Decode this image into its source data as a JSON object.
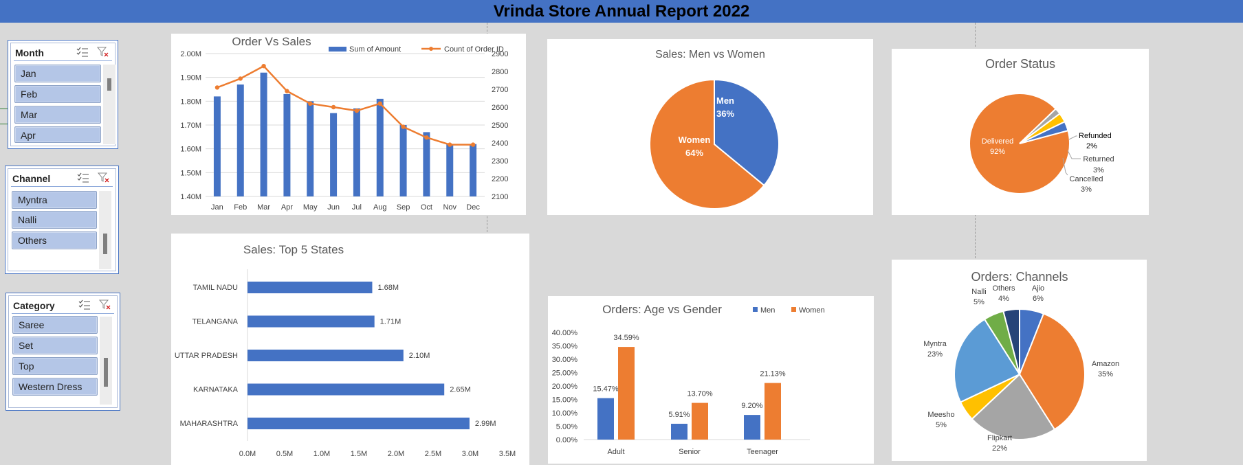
{
  "report_title": "Vrinda Store Annual Report 2022",
  "slicers": {
    "month": {
      "title": "Month",
      "items": [
        "Jan",
        "Feb",
        "Mar",
        "Apr"
      ]
    },
    "channel": {
      "title": "Channel",
      "items": [
        "Myntra",
        "Nalli",
        "Others"
      ]
    },
    "category": {
      "title": "Category",
      "items": [
        "Saree",
        "Set",
        "Top",
        "Western Dress"
      ]
    },
    "icons": {
      "multi_select": "multi-select-icon",
      "clear_filter": "clear-filter-icon"
    }
  },
  "colors": {
    "blue": "#4472c4",
    "orange": "#ed7d31",
    "gray": "#a5a5a5",
    "yellow": "#ffc000",
    "lightblue": "#5b9bd5",
    "green": "#70ad47",
    "navy": "#264478"
  },
  "chart_data": [
    {
      "id": "order_vs_sales",
      "type": "bar",
      "title": "Order Vs Sales",
      "categories": [
        "Jan",
        "Feb",
        "Mar",
        "Apr",
        "May",
        "Jun",
        "Jul",
        "Aug",
        "Sep",
        "Oct",
        "Nov",
        "Dec"
      ],
      "series": [
        {
          "name": "Sum of Amount",
          "type": "bar",
          "axis": "left",
          "values": [
            1.82,
            1.87,
            1.92,
            1.83,
            1.8,
            1.75,
            1.77,
            1.81,
            1.7,
            1.67,
            1.62,
            1.62
          ]
        },
        {
          "name": "Count of Order ID",
          "type": "line",
          "axis": "right",
          "values": [
            2710,
            2760,
            2830,
            2690,
            2620,
            2600,
            2580,
            2620,
            2490,
            2430,
            2390,
            2390
          ]
        }
      ],
      "ylim_left": [
        1.4,
        2.0
      ],
      "ylim_right": [
        2100,
        2900
      ],
      "left_ticks": [
        "1.40M",
        "1.50M",
        "1.60M",
        "1.70M",
        "1.80M",
        "1.90M",
        "2.00M"
      ],
      "right_ticks": [
        "2100",
        "2200",
        "2300",
        "2400",
        "2500",
        "2600",
        "2700",
        "2800",
        "2900"
      ],
      "legend": "top"
    },
    {
      "id": "sales_men_women",
      "type": "pie",
      "title": "Sales: Men vs Women",
      "slices": [
        {
          "label": "Men",
          "value": 36,
          "pct": "36%"
        },
        {
          "label": "Women",
          "value": 64,
          "pct": "64%"
        }
      ]
    },
    {
      "id": "order_status",
      "type": "pie",
      "title": "Order Status",
      "slices": [
        {
          "label": "Delivered",
          "value": 92,
          "pct": "92%"
        },
        {
          "label": "Refunded",
          "value": 2,
          "pct": "2%"
        },
        {
          "label": "Returned",
          "value": 3,
          "pct": "3%"
        },
        {
          "label": "Cancelled",
          "value": 3,
          "pct": "3%"
        }
      ]
    },
    {
      "id": "top5_states",
      "type": "bar",
      "orientation": "horizontal",
      "title": "Sales: Top 5 States",
      "categories": [
        "TAMIL NADU",
        "TELANGANA",
        "UTTAR PRADESH",
        "KARNATAKA",
        "MAHARASHTRA"
      ],
      "values": [
        1.68,
        1.71,
        2.1,
        2.65,
        2.99
      ],
      "labels": [
        "1.68M",
        "1.71M",
        "2.10M",
        "2.65M",
        "2.99M"
      ],
      "xlim": [
        0,
        3.5
      ],
      "ticks": [
        "0.0M",
        "0.5M",
        "1.0M",
        "1.5M",
        "2.0M",
        "2.5M",
        "3.0M",
        "3.5M"
      ]
    },
    {
      "id": "age_vs_gender",
      "type": "bar",
      "title": "Orders: Age vs Gender",
      "categories": [
        "Adult",
        "Senior",
        "Teenager"
      ],
      "series": [
        {
          "name": "Men",
          "values": [
            15.47,
            5.91,
            9.2
          ],
          "labels": [
            "15.47%",
            "5.91%",
            "9.20%"
          ]
        },
        {
          "name": "Women",
          "values": [
            34.59,
            13.7,
            21.13
          ],
          "labels": [
            "34.59%",
            "13.70%",
            "21.13%"
          ]
        }
      ],
      "ylim": [
        0,
        40
      ],
      "ticks": [
        "0.00%",
        "5.00%",
        "10.00%",
        "15.00%",
        "20.00%",
        "25.00%",
        "30.00%",
        "35.00%",
        "40.00%"
      ],
      "legend": "top"
    },
    {
      "id": "orders_channels",
      "type": "pie",
      "title": "Orders: Channels",
      "slices": [
        {
          "label": "Ajio",
          "value": 6,
          "pct": "6%"
        },
        {
          "label": "Amazon",
          "value": 35,
          "pct": "35%"
        },
        {
          "label": "Flipkart",
          "value": 22,
          "pct": "22%"
        },
        {
          "label": "Meesho",
          "value": 5,
          "pct": "5%"
        },
        {
          "label": "Myntra",
          "value": 23,
          "pct": "23%"
        },
        {
          "label": "Nalli",
          "value": 5,
          "pct": "5%"
        },
        {
          "label": "Others",
          "value": 4,
          "pct": "4%"
        }
      ]
    }
  ]
}
